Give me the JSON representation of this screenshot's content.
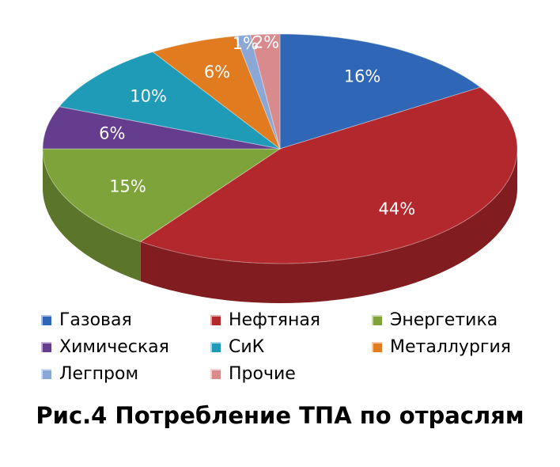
{
  "chart_data": {
    "type": "pie",
    "title": "Рис.4 Потребление ТПА по отраслям",
    "categories": [
      "Газовая",
      "Нефтяная",
      "Энергетика",
      "Химическая",
      "СиК",
      "Металлургия",
      "Легпром",
      "Прочие"
    ],
    "values": [
      16,
      44,
      15,
      6,
      10,
      6,
      1,
      2
    ],
    "data_labels": [
      "16%",
      "44%",
      "15%",
      "6%",
      "10%",
      "6%",
      "1%",
      "2%"
    ],
    "colors": [
      "#2f66b5",
      "#b3282c",
      "#7ea33a",
      "#653d8e",
      "#1f9bb7",
      "#e07b1f",
      "#8aa7d6",
      "#d98a8c"
    ],
    "legend_position": "bottom",
    "style": "3d"
  }
}
